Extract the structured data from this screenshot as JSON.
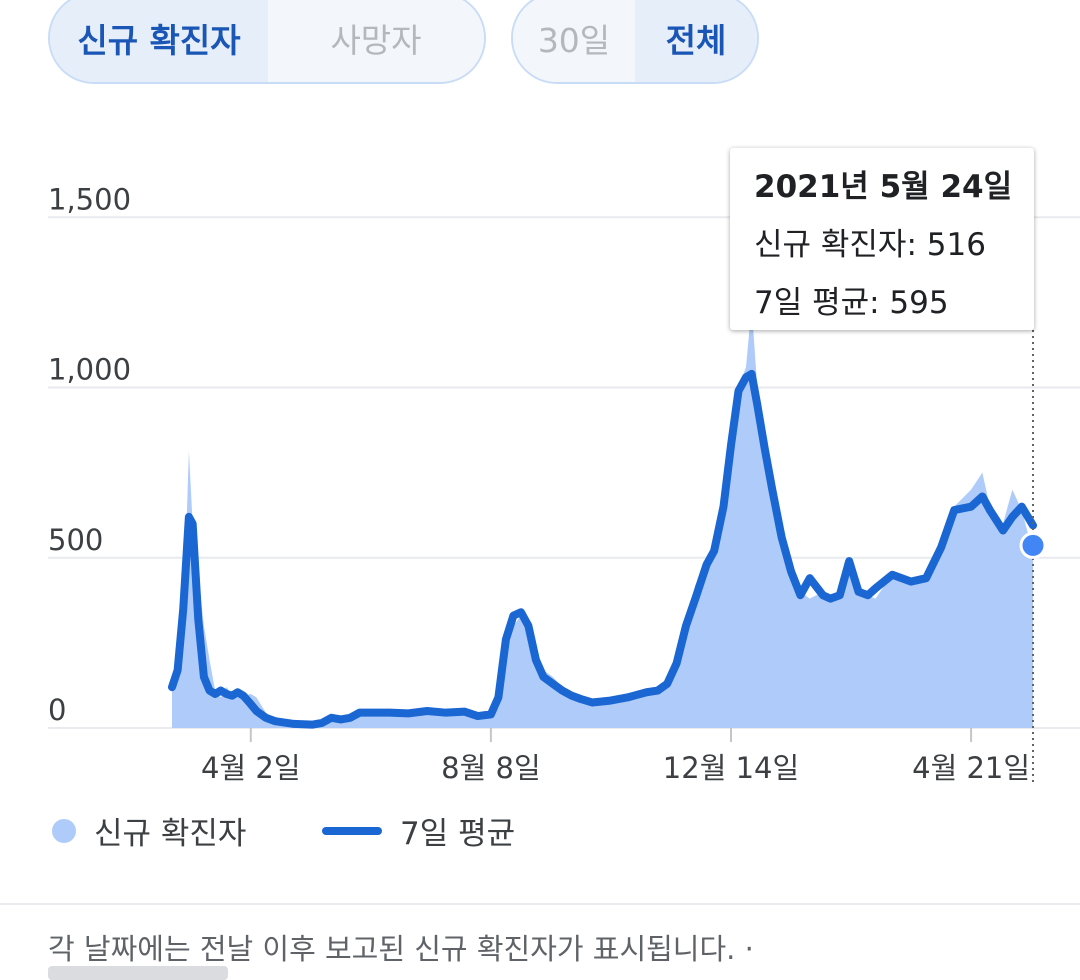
{
  "metric_toggle": {
    "cases_label": "신규 확진자",
    "deaths_label": "사망자"
  },
  "range_toggle": {
    "days30_label": "30일",
    "all_label": "전체"
  },
  "tooltip": {
    "date": "2021년 5월 24일",
    "cases_text": "신규 확진자: 516",
    "avg_text": "7일 평균: 595"
  },
  "legend": {
    "cases_label": "신규 확진자",
    "avg_label": "7일 평균"
  },
  "footnote": "각 날짜에는 전날 이후 보고된 신규 확진자가 표시됩니다.  ·",
  "colors": {
    "bars": "#aecbfa",
    "line": "#1a66d2",
    "active_tab": "#1a56b6"
  },
  "chart_data": {
    "type": "bar",
    "xlabel": "",
    "ylabel": "",
    "ylim": [
      0,
      1650
    ],
    "yticks": [
      0,
      500,
      1000,
      1500
    ],
    "ytick_labels": [
      "0",
      "500",
      "1,000",
      "1,500"
    ],
    "x_tick_labels": [
      {
        "label": "4월 2일",
        "date": "2020-04-02"
      },
      {
        "label": "8월 8일",
        "date": "2020-08-08"
      },
      {
        "label": "12월 14일",
        "date": "2020-12-14"
      },
      {
        "label": "4월 21일",
        "date": "2021-04-21"
      }
    ],
    "x_range": [
      "2020-02-20",
      "2021-05-24"
    ],
    "grid": true,
    "highlight": {
      "date": "2021-05-24",
      "cases": 516,
      "avg": 595
    },
    "series": [
      {
        "name": "신규 확진자",
        "kind": "bar",
        "points": [
          [
            "2020-02-20",
            120
          ],
          [
            "2020-02-23",
            180
          ],
          [
            "2020-02-26",
            300
          ],
          [
            "2020-02-29",
            813
          ],
          [
            "2020-03-02",
            600
          ],
          [
            "2020-03-05",
            450
          ],
          [
            "2020-03-08",
            300
          ],
          [
            "2020-03-11",
            200
          ],
          [
            "2020-03-14",
            110
          ],
          [
            "2020-03-17",
            90
          ],
          [
            "2020-03-20",
            120
          ],
          [
            "2020-03-23",
            100
          ],
          [
            "2020-03-26",
            100
          ],
          [
            "2020-03-29",
            95
          ],
          [
            "2020-04-02",
            100
          ],
          [
            "2020-04-05",
            90
          ],
          [
            "2020-04-10",
            45
          ],
          [
            "2020-04-15",
            25
          ],
          [
            "2020-04-25",
            12
          ],
          [
            "2020-05-05",
            8
          ],
          [
            "2020-05-10",
            15
          ],
          [
            "2020-05-15",
            25
          ],
          [
            "2020-05-20",
            25
          ],
          [
            "2020-05-25",
            20
          ],
          [
            "2020-05-30",
            35
          ],
          [
            "2020-06-05",
            45
          ],
          [
            "2020-06-15",
            45
          ],
          [
            "2020-06-25",
            45
          ],
          [
            "2020-07-05",
            50
          ],
          [
            "2020-07-15",
            55
          ],
          [
            "2020-07-25",
            50
          ],
          [
            "2020-08-01",
            35
          ],
          [
            "2020-08-08",
            40
          ],
          [
            "2020-08-12",
            60
          ],
          [
            "2020-08-16",
            230
          ],
          [
            "2020-08-20",
            300
          ],
          [
            "2020-08-24",
            330
          ],
          [
            "2020-08-28",
            320
          ],
          [
            "2020-09-01",
            240
          ],
          [
            "2020-09-05",
            170
          ],
          [
            "2020-09-10",
            150
          ],
          [
            "2020-09-15",
            120
          ],
          [
            "2020-09-20",
            100
          ],
          [
            "2020-09-25",
            85
          ],
          [
            "2020-10-01",
            70
          ],
          [
            "2020-10-10",
            75
          ],
          [
            "2020-10-20",
            85
          ],
          [
            "2020-10-30",
            100
          ],
          [
            "2020-11-05",
            110
          ],
          [
            "2020-11-10",
            120
          ],
          [
            "2020-11-15",
            180
          ],
          [
            "2020-11-20",
            310
          ],
          [
            "2020-11-25",
            420
          ],
          [
            "2020-12-01",
            480
          ],
          [
            "2020-12-05",
            560
          ],
          [
            "2020-12-10",
            650
          ],
          [
            "2020-12-14",
            850
          ],
          [
            "2020-12-18",
            1000
          ],
          [
            "2020-12-22",
            1060
          ],
          [
            "2020-12-25",
            1240
          ],
          [
            "2020-12-28",
            1000
          ],
          [
            "2021-01-01",
            850
          ],
          [
            "2021-01-05",
            700
          ],
          [
            "2021-01-10",
            600
          ],
          [
            "2021-01-15",
            500
          ],
          [
            "2021-01-20",
            400
          ],
          [
            "2021-01-25",
            380
          ],
          [
            "2021-02-01",
            400
          ],
          [
            "2021-02-05",
            380
          ],
          [
            "2021-02-10",
            400
          ],
          [
            "2021-02-15",
            480
          ],
          [
            "2021-02-20",
            420
          ],
          [
            "2021-02-25",
            390
          ],
          [
            "2021-03-01",
            380
          ],
          [
            "2021-03-10",
            450
          ],
          [
            "2021-03-20",
            440
          ],
          [
            "2021-03-28",
            450
          ],
          [
            "2021-04-05",
            550
          ],
          [
            "2021-04-12",
            650
          ],
          [
            "2021-04-21",
            700
          ],
          [
            "2021-04-27",
            750
          ],
          [
            "2021-05-01",
            650
          ],
          [
            "2021-05-08",
            600
          ],
          [
            "2021-05-13",
            700
          ],
          [
            "2021-05-18",
            640
          ],
          [
            "2021-05-24",
            516
          ]
        ]
      },
      {
        "name": "7일 평균",
        "kind": "line",
        "points": [
          [
            "2020-02-20",
            120
          ],
          [
            "2020-02-23",
            170
          ],
          [
            "2020-02-26",
            350
          ],
          [
            "2020-02-29",
            620
          ],
          [
            "2020-03-02",
            600
          ],
          [
            "2020-03-05",
            320
          ],
          [
            "2020-03-08",
            150
          ],
          [
            "2020-03-11",
            110
          ],
          [
            "2020-03-14",
            100
          ],
          [
            "2020-03-17",
            110
          ],
          [
            "2020-03-20",
            100
          ],
          [
            "2020-03-23",
            95
          ],
          [
            "2020-03-26",
            105
          ],
          [
            "2020-03-29",
            95
          ],
          [
            "2020-04-02",
            70
          ],
          [
            "2020-04-05",
            50
          ],
          [
            "2020-04-10",
            30
          ],
          [
            "2020-04-15",
            20
          ],
          [
            "2020-04-25",
            12
          ],
          [
            "2020-05-05",
            10
          ],
          [
            "2020-05-10",
            15
          ],
          [
            "2020-05-15",
            30
          ],
          [
            "2020-05-20",
            25
          ],
          [
            "2020-05-25",
            30
          ],
          [
            "2020-05-30",
            45
          ],
          [
            "2020-06-05",
            45
          ],
          [
            "2020-06-15",
            45
          ],
          [
            "2020-06-25",
            43
          ],
          [
            "2020-07-05",
            50
          ],
          [
            "2020-07-15",
            45
          ],
          [
            "2020-07-25",
            48
          ],
          [
            "2020-08-01",
            35
          ],
          [
            "2020-08-08",
            40
          ],
          [
            "2020-08-12",
            90
          ],
          [
            "2020-08-16",
            260
          ],
          [
            "2020-08-20",
            330
          ],
          [
            "2020-08-24",
            340
          ],
          [
            "2020-08-28",
            300
          ],
          [
            "2020-09-01",
            200
          ],
          [
            "2020-09-05",
            150
          ],
          [
            "2020-09-10",
            130
          ],
          [
            "2020-09-15",
            110
          ],
          [
            "2020-09-20",
            95
          ],
          [
            "2020-09-25",
            85
          ],
          [
            "2020-10-01",
            75
          ],
          [
            "2020-10-10",
            80
          ],
          [
            "2020-10-20",
            90
          ],
          [
            "2020-10-30",
            105
          ],
          [
            "2020-11-05",
            110
          ],
          [
            "2020-11-10",
            130
          ],
          [
            "2020-11-15",
            190
          ],
          [
            "2020-11-20",
            300
          ],
          [
            "2020-11-25",
            380
          ],
          [
            "2020-12-01",
            480
          ],
          [
            "2020-12-05",
            520
          ],
          [
            "2020-12-10",
            650
          ],
          [
            "2020-12-14",
            830
          ],
          [
            "2020-12-18",
            990
          ],
          [
            "2020-12-22",
            1030
          ],
          [
            "2020-12-25",
            1040
          ],
          [
            "2020-12-28",
            950
          ],
          [
            "2021-01-01",
            820
          ],
          [
            "2021-01-05",
            700
          ],
          [
            "2021-01-10",
            560
          ],
          [
            "2021-01-15",
            460
          ],
          [
            "2021-01-20",
            390
          ],
          [
            "2021-01-25",
            440
          ],
          [
            "2021-02-01",
            390
          ],
          [
            "2021-02-05",
            380
          ],
          [
            "2021-02-10",
            390
          ],
          [
            "2021-02-15",
            490
          ],
          [
            "2021-02-20",
            400
          ],
          [
            "2021-02-25",
            390
          ],
          [
            "2021-03-01",
            410
          ],
          [
            "2021-03-10",
            450
          ],
          [
            "2021-03-20",
            430
          ],
          [
            "2021-03-28",
            440
          ],
          [
            "2021-04-05",
            530
          ],
          [
            "2021-04-12",
            640
          ],
          [
            "2021-04-21",
            650
          ],
          [
            "2021-04-27",
            680
          ],
          [
            "2021-05-01",
            640
          ],
          [
            "2021-05-08",
            580
          ],
          [
            "2021-05-13",
            620
          ],
          [
            "2021-05-18",
            650
          ],
          [
            "2021-05-24",
            595
          ]
        ]
      }
    ]
  }
}
